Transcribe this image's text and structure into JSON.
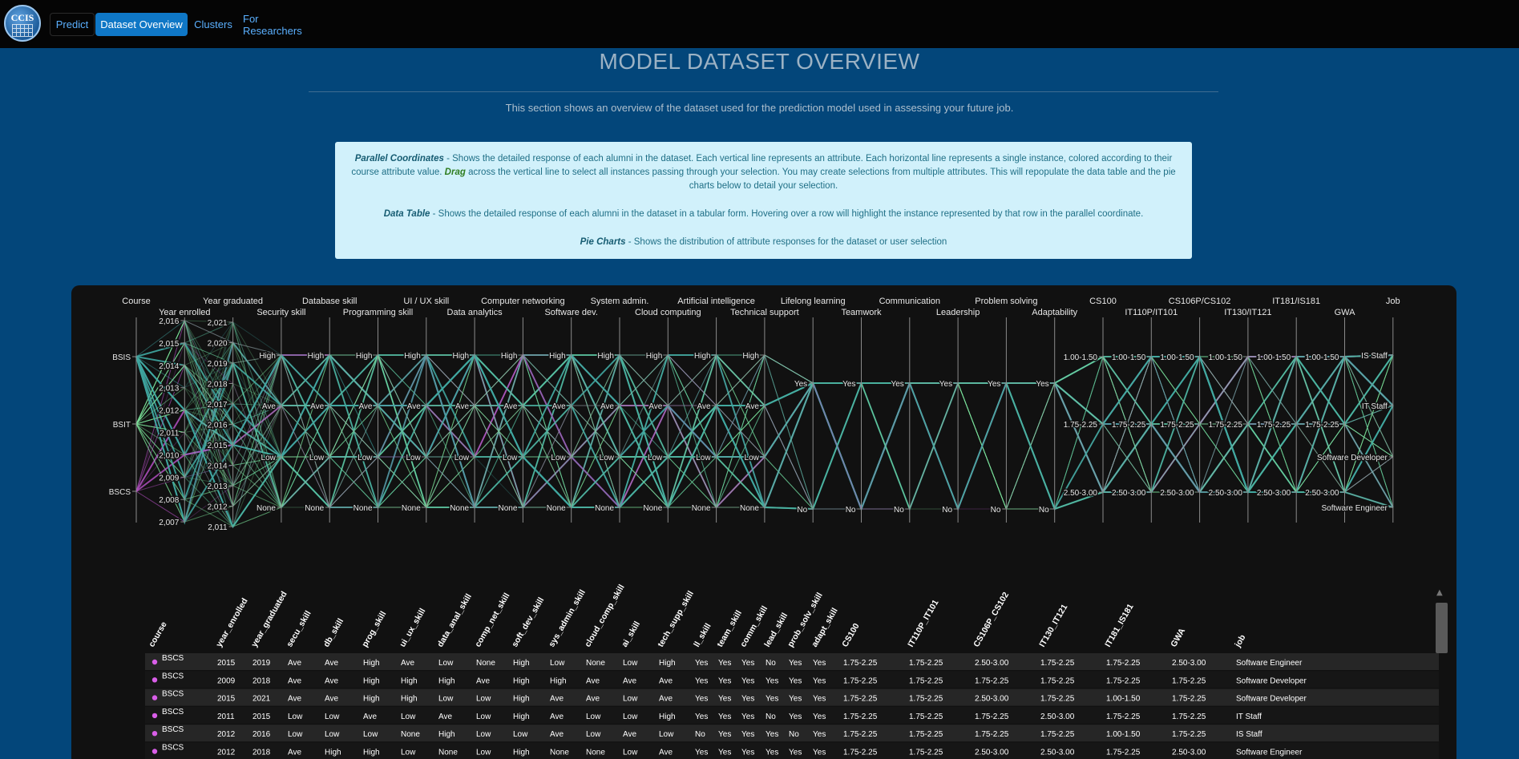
{
  "nav": {
    "logo_text": "CCIS",
    "tabs": [
      {
        "label": "Predict",
        "active": false
      },
      {
        "label": "Dataset Overview",
        "active": true
      },
      {
        "label": "Clusters",
        "active": false
      },
      {
        "label": "For Researchers",
        "active": false
      }
    ]
  },
  "page": {
    "title": "MODEL DATASET OVERVIEW",
    "subtitle": "This section shows an overview of the dataset used for the prediction model used in assessing your future job."
  },
  "info": {
    "pc_title": "Parallel Coordinates",
    "pc_text_1": " - Shows the detailed response of each alumni in the dataset. Each vertical line represents an attribute. Each horizontal line represents a single instance, colored according to their course attribute value. ",
    "drag": "Drag",
    "pc_text_2": " across the vertical line to select all instances passing through your selection. You may create selections from multiple attributes. This will repopulate the data table and the pie charts below to detail your selection.",
    "dt_title": "Data Table",
    "dt_text": " - Shows the detailed response of each alumni in the dataset in a tabular form. Hovering over a row will highlight the instance represented by that row in the parallel coordinate.",
    "pie_title": "Pie Charts",
    "pie_text": " - Shows the distribution of attribute responses for the dataset or user selection"
  },
  "colors": {
    "bsis": "#3fa6a0",
    "bsit": "#7fe39a",
    "bscs": "#b04fc0",
    "dot": "#d95ee8"
  },
  "parallel": {
    "axes": [
      {
        "name": "Course",
        "ticks": [
          "BSIS",
          "BSIT",
          "BSCS"
        ]
      },
      {
        "name": "Year enrolled",
        "ticks": [
          "2,016",
          "2,015",
          "2,014",
          "2,013",
          "2,012",
          "2,011",
          "2,010",
          "2,009",
          "2,008",
          "2,007"
        ]
      },
      {
        "name": "Year graduated",
        "ticks": [
          "2,021",
          "2,020",
          "2,019",
          "2,018",
          "2,017",
          "2,016",
          "2,015",
          "2,014",
          "2,013",
          "2,012",
          "2,011"
        ]
      },
      {
        "name": "Security skill",
        "ticks": [
          "High",
          "Ave",
          "Low",
          "None"
        ]
      },
      {
        "name": "Database skill",
        "ticks": [
          "High",
          "Ave",
          "Low",
          "None"
        ]
      },
      {
        "name": "Programming skill",
        "ticks": [
          "High",
          "Ave",
          "Low",
          "None"
        ]
      },
      {
        "name": "UI / UX skill",
        "ticks": [
          "High",
          "Ave",
          "Low",
          "None"
        ]
      },
      {
        "name": "Data analytics",
        "ticks": [
          "High",
          "Ave",
          "Low",
          "None"
        ]
      },
      {
        "name": "Computer networking",
        "ticks": [
          "High",
          "Ave",
          "Low",
          "None"
        ]
      },
      {
        "name": "Software dev.",
        "ticks": [
          "High",
          "Ave",
          "Low",
          "None"
        ]
      },
      {
        "name": "System admin.",
        "ticks": [
          "High",
          "Ave",
          "Low",
          "None"
        ]
      },
      {
        "name": "Cloud computing",
        "ticks": [
          "High",
          "Ave",
          "Low",
          "None"
        ]
      },
      {
        "name": "Artificial intelligence",
        "ticks": [
          "High",
          "Ave",
          "Low",
          "None"
        ]
      },
      {
        "name": "Technical support",
        "ticks": [
          "High",
          "Ave",
          "Low",
          "None"
        ]
      },
      {
        "name": "Lifelong learning",
        "ticks": [
          "Yes",
          "No"
        ]
      },
      {
        "name": "Teamwork",
        "ticks": [
          "Yes",
          "No"
        ]
      },
      {
        "name": "Communication",
        "ticks": [
          "Yes",
          "No"
        ]
      },
      {
        "name": "Leadership",
        "ticks": [
          "Yes",
          "No"
        ]
      },
      {
        "name": "Problem solving",
        "ticks": [
          "Yes",
          "No"
        ]
      },
      {
        "name": "Adaptability",
        "ticks": [
          "Yes",
          "No"
        ]
      },
      {
        "name": "CS100",
        "ticks": [
          "1.00-1.50",
          "1.75-2.25",
          "2.50-3.00"
        ]
      },
      {
        "name": "IT110P/IT101",
        "ticks": [
          "1.00-1.50",
          "1.75-2.25",
          "2.50-3.00"
        ]
      },
      {
        "name": "CS106P/CS102",
        "ticks": [
          "1.00-1.50",
          "1.75-2.25",
          "2.50-3.00"
        ]
      },
      {
        "name": "IT130/IT121",
        "ticks": [
          "1.00-1.50",
          "1.75-2.25",
          "2.50-3.00"
        ]
      },
      {
        "name": "IT181/IS181",
        "ticks": [
          "1.00-1.50",
          "1.75-2.25",
          "2.50-3.00"
        ]
      },
      {
        "name": "GWA",
        "ticks": [
          "1.00-1.50",
          "1.75-2.25",
          "2.50-3.00"
        ]
      },
      {
        "name": "Job",
        "ticks": [
          "IS Staff",
          "IT Staff",
          "Software Developer",
          "Software Engineer"
        ]
      }
    ]
  },
  "table": {
    "columns": [
      "course",
      "year_enrolled",
      "year_graduated",
      "secu_skill",
      "db_skill",
      "prog_skill",
      "ui_ux_skill",
      "data_anal_skill",
      "comp_net_skill",
      "soft_dev_skill",
      "sys_admin_skill",
      "cloud_comp_skill",
      "ai_skill",
      "tech_supp_skill",
      "ll_skill",
      "team_skill",
      "comm_skill",
      "lead_skill",
      "prob_solv_skill",
      "adapt_skill",
      "CS100",
      "IT110P_IT101",
      "CS106P_CS102",
      "IT130_IT121",
      "IT181_IS181",
      "GWA",
      "job"
    ],
    "rows": [
      [
        "BSCS",
        "2015",
        "2019",
        "Ave",
        "Ave",
        "High",
        "Ave",
        "Low",
        "None",
        "High",
        "Low",
        "None",
        "Low",
        "High",
        "Yes",
        "Yes",
        "Yes",
        "No",
        "Yes",
        "Yes",
        "1.75-2.25",
        "1.75-2.25",
        "2.50-3.00",
        "1.75-2.25",
        "1.75-2.25",
        "2.50-3.00",
        "Software Engineer"
      ],
      [
        "BSCS",
        "2009",
        "2018",
        "Ave",
        "Ave",
        "High",
        "High",
        "High",
        "Ave",
        "High",
        "High",
        "Ave",
        "Ave",
        "Ave",
        "Yes",
        "Yes",
        "Yes",
        "Yes",
        "Yes",
        "Yes",
        "1.75-2.25",
        "1.75-2.25",
        "1.75-2.25",
        "1.75-2.25",
        "1.75-2.25",
        "1.75-2.25",
        "Software Developer"
      ],
      [
        "BSCS",
        "2015",
        "2021",
        "Ave",
        "Ave",
        "High",
        "High",
        "Low",
        "Low",
        "High",
        "Ave",
        "Ave",
        "Low",
        "Ave",
        "Yes",
        "Yes",
        "Yes",
        "Yes",
        "Yes",
        "Yes",
        "1.75-2.25",
        "1.75-2.25",
        "2.50-3.00",
        "1.75-2.25",
        "1.00-1.50",
        "1.75-2.25",
        "Software Developer"
      ],
      [
        "BSCS",
        "2011",
        "2015",
        "Low",
        "Low",
        "Ave",
        "Low",
        "Ave",
        "Low",
        "High",
        "Ave",
        "Low",
        "Low",
        "High",
        "Yes",
        "Yes",
        "Yes",
        "No",
        "Yes",
        "Yes",
        "1.75-2.25",
        "1.75-2.25",
        "1.75-2.25",
        "2.50-3.00",
        "1.75-2.25",
        "1.75-2.25",
        "IT Staff"
      ],
      [
        "BSCS",
        "2012",
        "2016",
        "Low",
        "Low",
        "Low",
        "None",
        "High",
        "Low",
        "Low",
        "Ave",
        "Low",
        "Ave",
        "Low",
        "No",
        "Yes",
        "Yes",
        "Yes",
        "No",
        "Yes",
        "1.75-2.25",
        "1.75-2.25",
        "1.75-2.25",
        "1.75-2.25",
        "1.00-1.50",
        "1.75-2.25",
        "IS Staff"
      ],
      [
        "BSCS",
        "2012",
        "2018",
        "Ave",
        "High",
        "High",
        "Low",
        "None",
        "Low",
        "High",
        "None",
        "None",
        "Low",
        "Ave",
        "Yes",
        "Yes",
        "Yes",
        "Yes",
        "Yes",
        "Yes",
        "1.75-2.25",
        "1.75-2.25",
        "2.50-3.00",
        "2.50-3.00",
        "1.75-2.25",
        "2.50-3.00",
        "Software Engineer"
      ]
    ]
  }
}
